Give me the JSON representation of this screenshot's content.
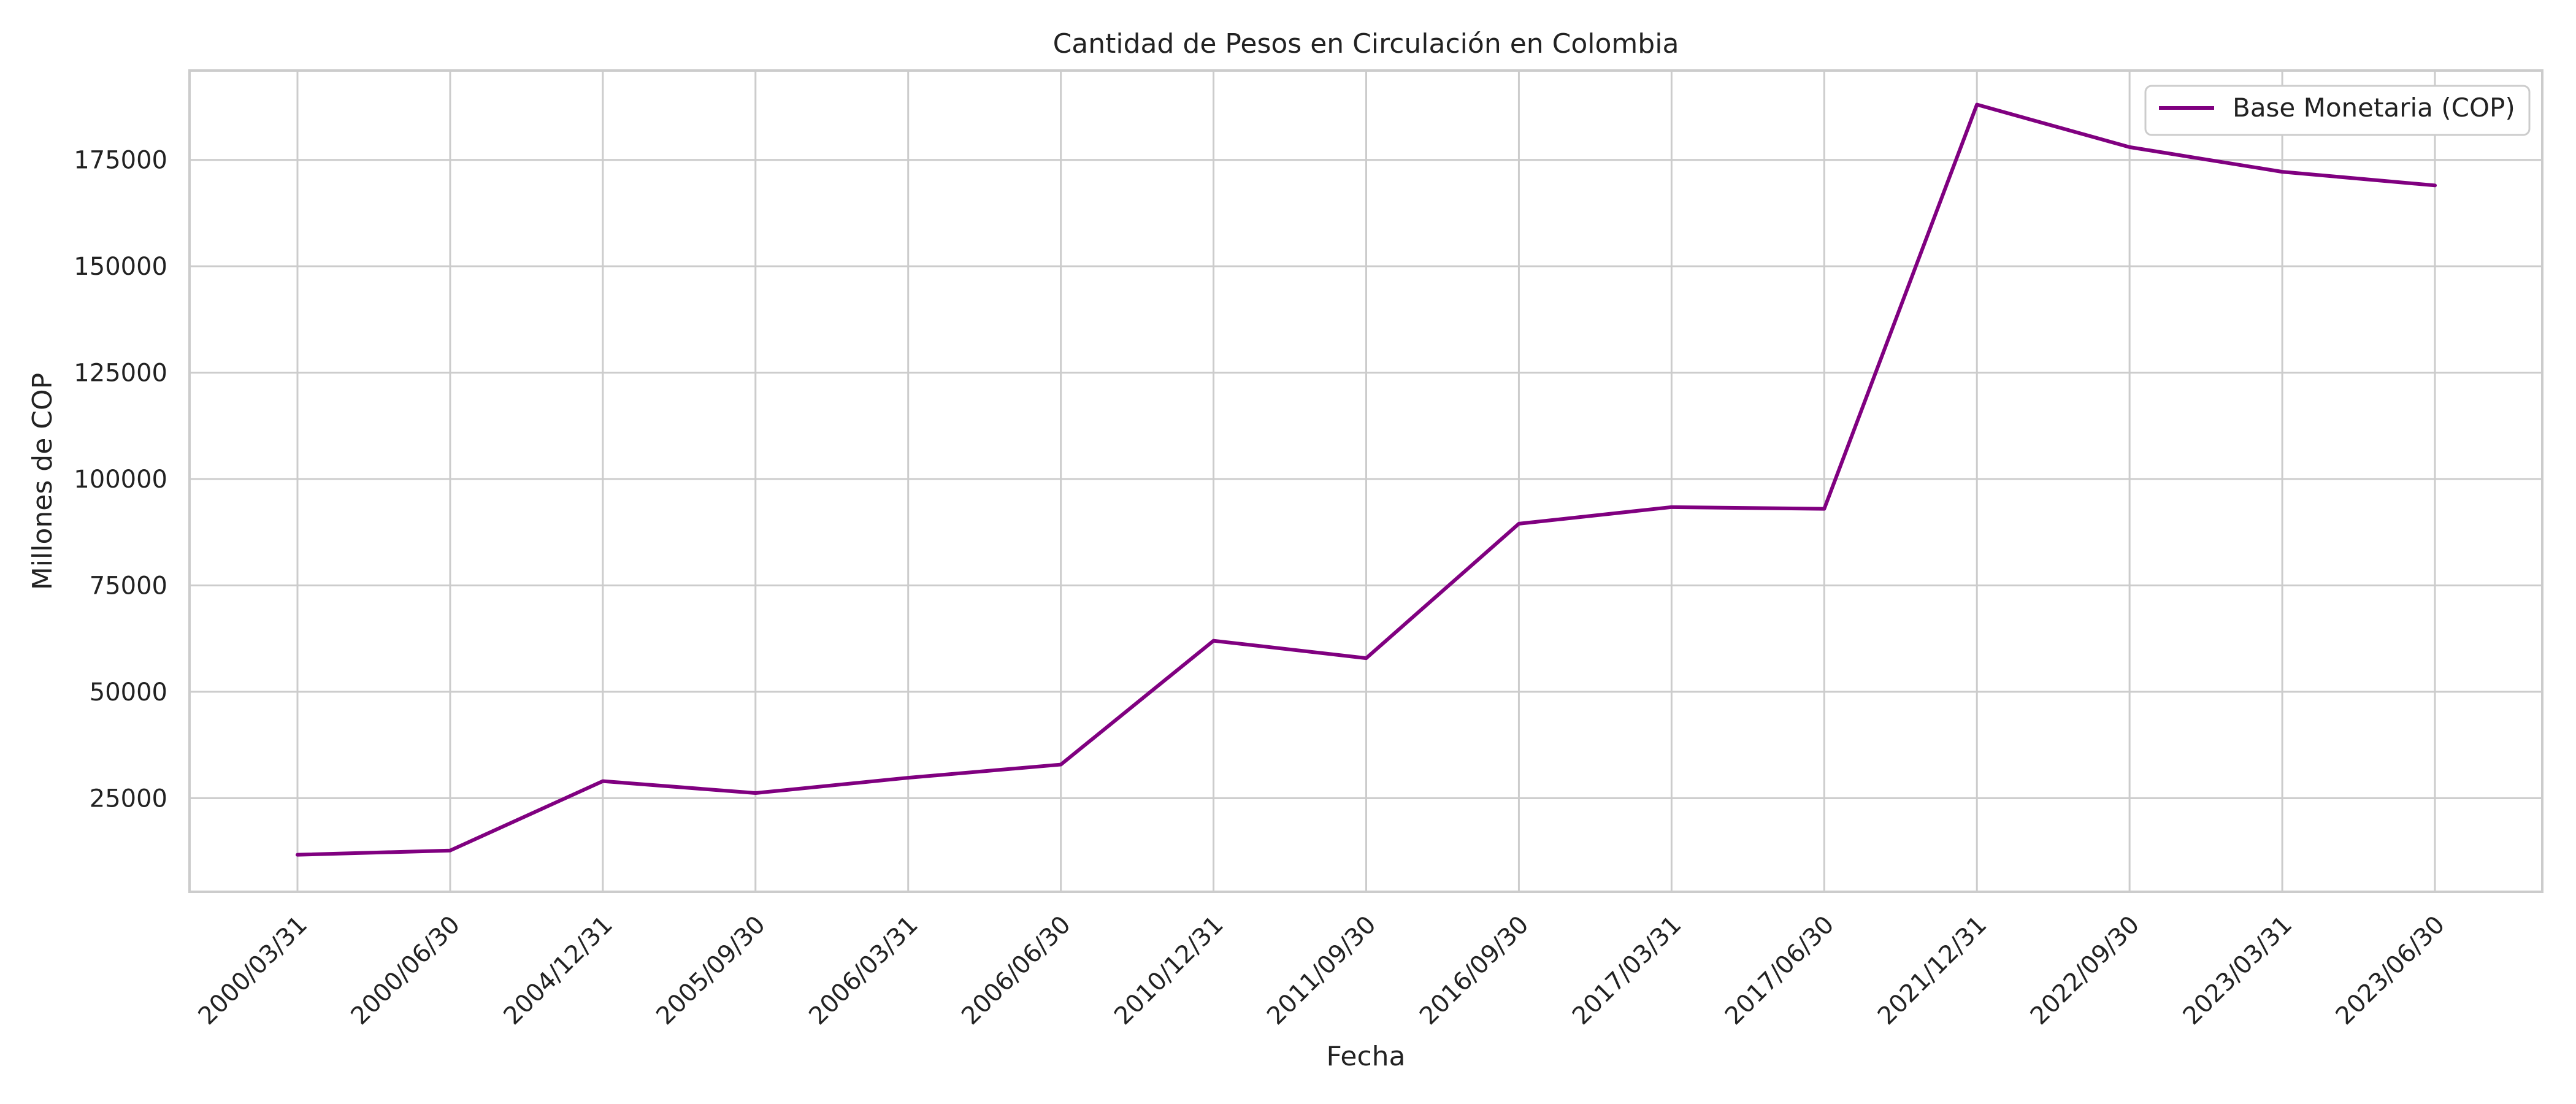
{
  "chart_data": {
    "type": "line",
    "title": "Cantidad de Pesos en Circulación en Colombia",
    "xlabel": "Fecha",
    "ylabel": "Millones de COP",
    "categories": [
      "2000/03/31",
      "2000/06/30",
      "2004/12/31",
      "2005/09/30",
      "2006/03/31",
      "2006/06/30",
      "2010/12/31",
      "2011/09/30",
      "2016/09/30",
      "2017/03/31",
      "2017/06/30",
      "2021/12/31",
      "2022/09/30",
      "2023/03/31",
      "2023/06/30"
    ],
    "series": [
      {
        "name": "Base Monetaria (COP)",
        "color": "#800080",
        "values": [
          11700,
          12700,
          29000,
          26200,
          29800,
          32900,
          62000,
          57900,
          89500,
          93400,
          93000,
          188000,
          178000,
          172200,
          169000
        ]
      }
    ],
    "ylim": [
      3000,
      196000
    ],
    "yticks": [
      25000,
      50000,
      75000,
      100000,
      125000,
      150000,
      175000
    ],
    "ytick_labels": [
      "25000",
      "50000",
      "75000",
      "100000",
      "125000",
      "150000",
      "175000"
    ],
    "grid": true,
    "legend_position": "upper right"
  }
}
